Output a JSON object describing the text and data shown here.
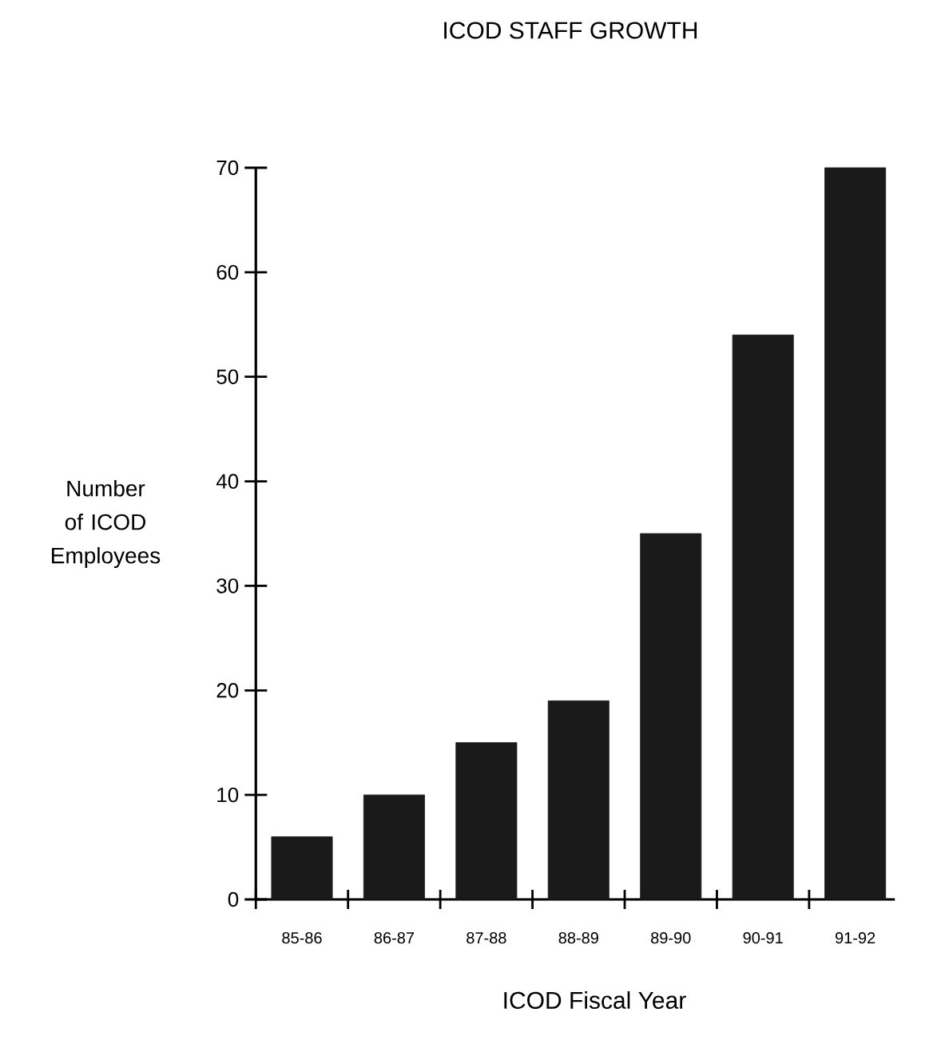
{
  "chart_data": {
    "type": "bar",
    "title": "ICOD STAFF GROWTH",
    "xlabel": "ICOD Fiscal Year",
    "ylabel": "Number of ICOD Employees",
    "categories": [
      "85-86",
      "86-87",
      "87-88",
      "88-89",
      "89-90",
      "90-91",
      "91-92"
    ],
    "values": [
      6,
      10,
      15,
      19,
      35,
      54,
      70
    ],
    "color": "#1a1a1a",
    "ylim": [
      0,
      70
    ],
    "yticks": [
      0,
      10,
      20,
      30,
      40,
      50,
      60,
      70
    ]
  }
}
